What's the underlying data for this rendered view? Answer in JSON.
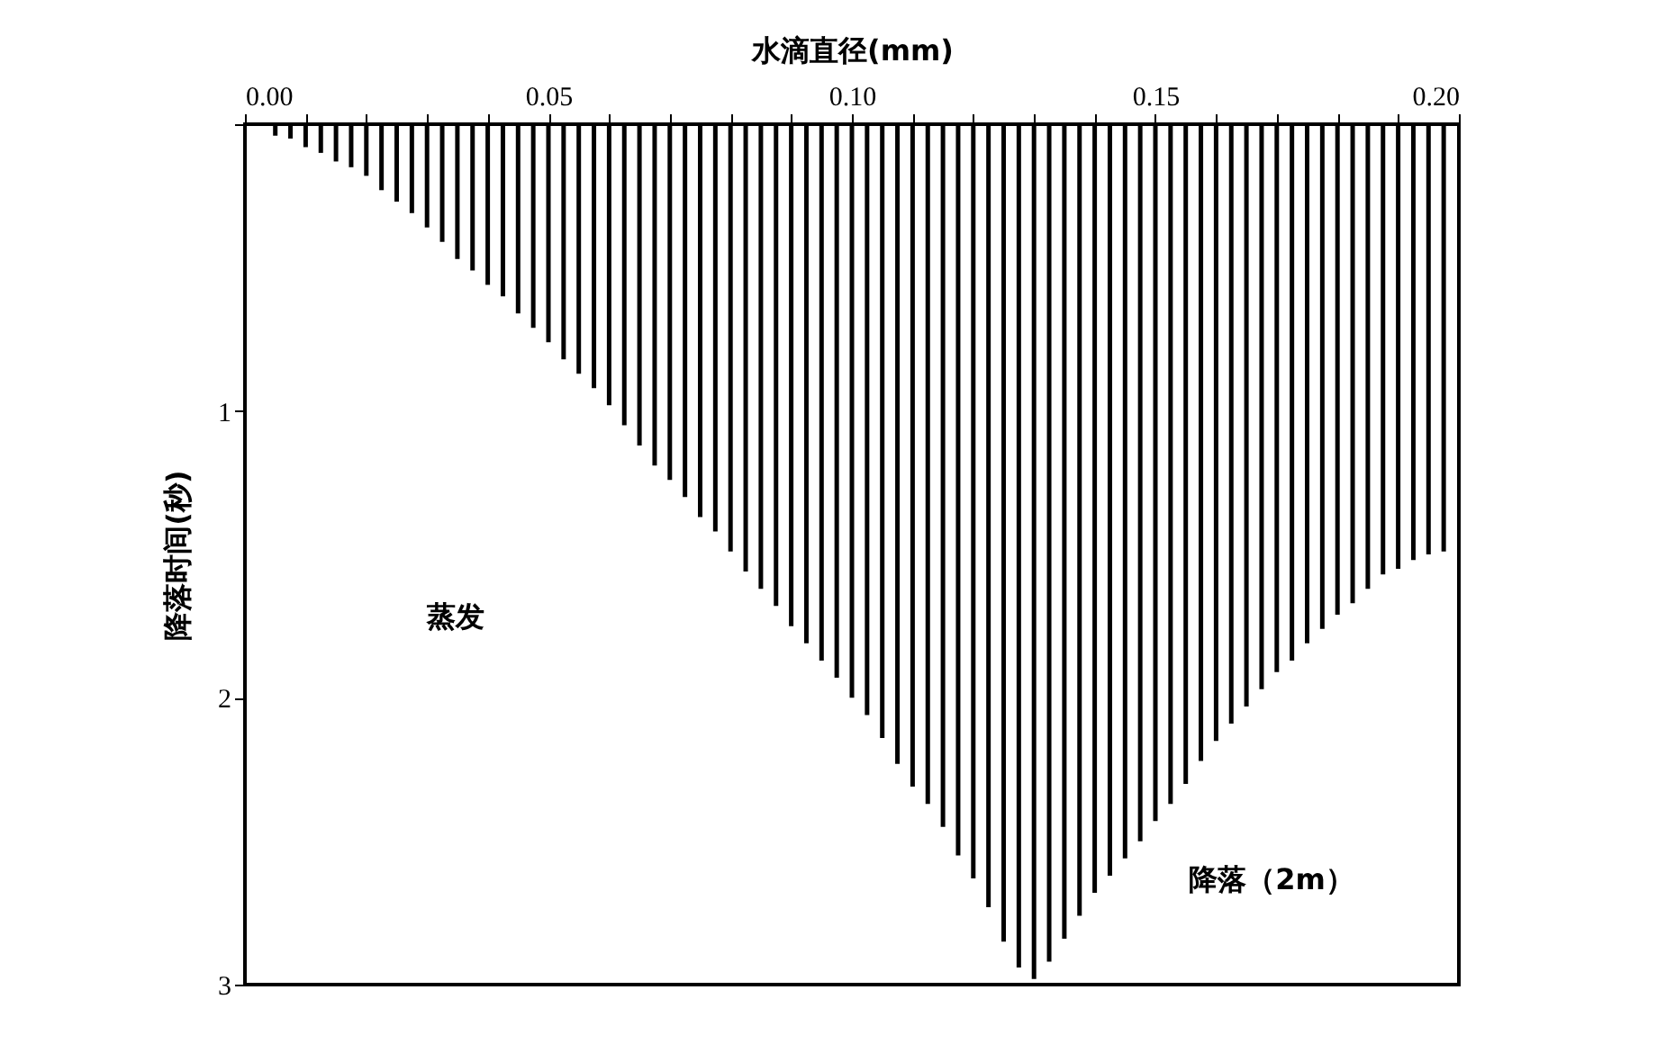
{
  "chart_data": {
    "type": "bar",
    "xlabel": "水滴直径(mm)",
    "ylabel": "降落时间(秒)",
    "x": [
      0.005,
      0.0075,
      0.01,
      0.0125,
      0.015,
      0.0175,
      0.02,
      0.0225,
      0.025,
      0.0275,
      0.03,
      0.0325,
      0.035,
      0.0375,
      0.04,
      0.0425,
      0.045,
      0.0475,
      0.05,
      0.0525,
      0.055,
      0.0575,
      0.06,
      0.0625,
      0.065,
      0.0675,
      0.07,
      0.0725,
      0.075,
      0.0775,
      0.08,
      0.0825,
      0.085,
      0.0875,
      0.09,
      0.0925,
      0.095,
      0.0975,
      0.1,
      0.1025,
      0.105,
      0.1075,
      0.11,
      0.1125,
      0.115,
      0.1175,
      0.12,
      0.1225,
      0.125,
      0.1275,
      0.13,
      0.1325,
      0.135,
      0.1375,
      0.14,
      0.1425,
      0.145,
      0.1475,
      0.15,
      0.1525,
      0.155,
      0.1575,
      0.16,
      0.1625,
      0.165,
      0.1675,
      0.17,
      0.1725,
      0.175,
      0.1775,
      0.18,
      0.1825,
      0.185,
      0.1875,
      0.19,
      0.1925,
      0.195,
      0.1975
    ],
    "values": [
      0.04,
      0.05,
      0.08,
      0.1,
      0.13,
      0.15,
      0.18,
      0.23,
      0.27,
      0.31,
      0.36,
      0.41,
      0.47,
      0.51,
      0.56,
      0.6,
      0.66,
      0.71,
      0.76,
      0.82,
      0.87,
      0.92,
      0.98,
      1.05,
      1.12,
      1.19,
      1.24,
      1.3,
      1.37,
      1.42,
      1.49,
      1.56,
      1.62,
      1.68,
      1.75,
      1.81,
      1.87,
      1.93,
      2.0,
      2.06,
      2.14,
      2.23,
      2.31,
      2.37,
      2.45,
      2.55,
      2.63,
      2.73,
      2.85,
      2.94,
      2.98,
      2.92,
      2.84,
      2.76,
      2.68,
      2.62,
      2.56,
      2.5,
      2.43,
      2.37,
      2.3,
      2.22,
      2.15,
      2.09,
      2.03,
      1.97,
      1.91,
      1.87,
      1.81,
      1.76,
      1.71,
      1.67,
      1.62,
      1.57,
      1.55,
      1.52,
      1.5,
      1.49
    ],
    "color": "#000000",
    "xlim": [
      0,
      0.2
    ],
    "xticks": [
      {
        "value": 0,
        "label": "0.00"
      },
      {
        "value": 0.01,
        "label": null
      },
      {
        "value": 0.02,
        "label": null
      },
      {
        "value": 0.03,
        "label": null
      },
      {
        "value": 0.04,
        "label": null
      },
      {
        "value": 0.05,
        "label": "0.05"
      },
      {
        "value": 0.06,
        "label": null
      },
      {
        "value": 0.07,
        "label": null
      },
      {
        "value": 0.08,
        "label": null
      },
      {
        "value": 0.09,
        "label": null
      },
      {
        "value": 0.1,
        "label": "0.10"
      },
      {
        "value": 0.11,
        "label": null
      },
      {
        "value": 0.12,
        "label": null
      },
      {
        "value": 0.13,
        "label": null
      },
      {
        "value": 0.14,
        "label": null
      },
      {
        "value": 0.15,
        "label": "0.15"
      },
      {
        "value": 0.16,
        "label": null
      },
      {
        "value": 0.17,
        "label": null
      },
      {
        "value": 0.18,
        "label": null
      },
      {
        "value": 0.19,
        "label": null
      },
      {
        "value": 0.2,
        "label": "0.20"
      }
    ],
    "ylim": [
      3,
      0
    ],
    "yticks": [
      {
        "value": 0,
        "label": null
      },
      1,
      2,
      3
    ],
    "grid": false,
    "annotations": [
      "蒸发",
      "降落（2m）"
    ]
  }
}
